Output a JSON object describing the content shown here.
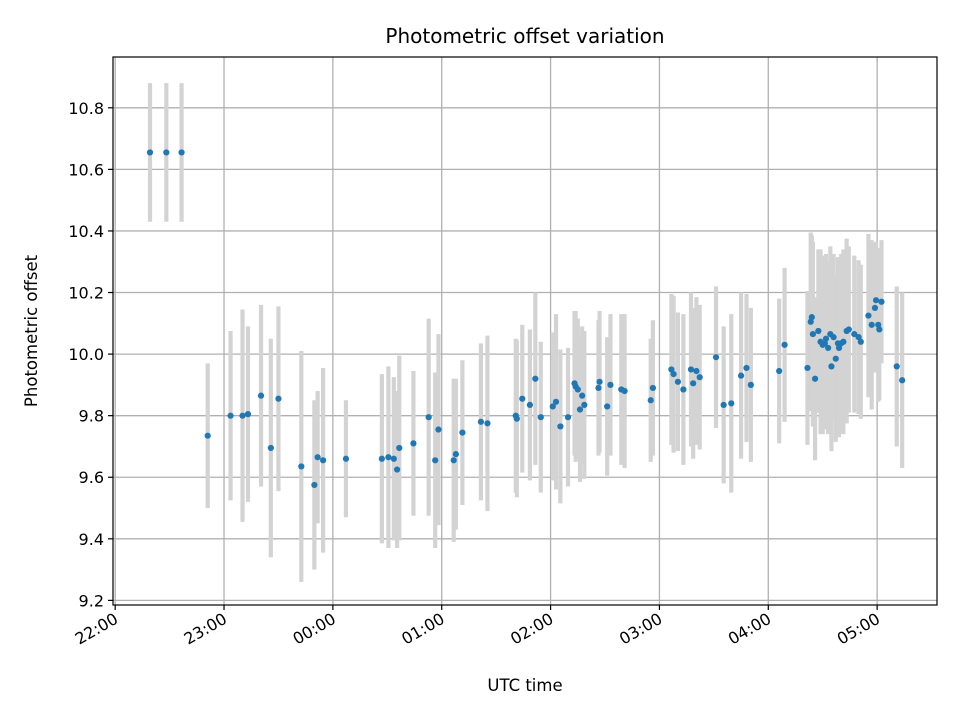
{
  "chart_data": {
    "type": "scatter",
    "title": "Photometric offset variation",
    "xlabel": "UTC time",
    "ylabel": "Photometric offset",
    "x_unit": "hours since 22:00 UTC",
    "xlim": [
      -0.02,
      7.55
    ],
    "ylim": [
      9.185,
      10.965
    ],
    "x_ticks": [
      {
        "value": 0,
        "label": "22:00"
      },
      {
        "value": 1,
        "label": "23:00"
      },
      {
        "value": 2,
        "label": "00:00"
      },
      {
        "value": 3,
        "label": "01:00"
      },
      {
        "value": 4,
        "label": "02:00"
      },
      {
        "value": 5,
        "label": "03:00"
      },
      {
        "value": 6,
        "label": "04:00"
      },
      {
        "value": 7,
        "label": "05:00"
      }
    ],
    "y_ticks": [
      {
        "value": 9.2,
        "label": "9.2"
      },
      {
        "value": 9.4,
        "label": "9.4"
      },
      {
        "value": 9.6,
        "label": "9.6"
      },
      {
        "value": 9.8,
        "label": "9.8"
      },
      {
        "value": 10.0,
        "label": "10.0"
      },
      {
        "value": 10.2,
        "label": "10.2"
      },
      {
        "value": 10.4,
        "label": "10.4"
      },
      {
        "value": 10.6,
        "label": "10.6"
      },
      {
        "value": 10.8,
        "label": "10.8"
      }
    ],
    "grid": true,
    "colors": {
      "point": "#1f77b4",
      "errorbar": "#d3d3d3",
      "grid": "#b0b0b0"
    },
    "series": [
      {
        "points": [
          [
            0.32,
            10.655,
            0.225
          ],
          [
            0.47,
            10.655,
            0.225
          ],
          [
            0.61,
            10.655,
            0.225
          ],
          [
            0.85,
            9.735,
            0.235
          ],
          [
            1.06,
            9.8,
            0.275
          ],
          [
            1.17,
            9.8,
            0.345
          ],
          [
            1.22,
            9.805,
            0.285
          ],
          [
            1.34,
            9.865,
            0.295
          ],
          [
            1.43,
            9.695,
            0.355
          ],
          [
            1.5,
            9.855,
            0.3
          ],
          [
            1.71,
            9.635,
            0.375
          ],
          [
            1.83,
            9.575,
            0.275
          ],
          [
            1.86,
            9.665,
            0.215
          ],
          [
            1.91,
            9.655,
            0.3
          ],
          [
            2.12,
            9.66,
            0.19
          ],
          [
            2.45,
            9.66,
            0.275
          ],
          [
            2.51,
            9.665,
            0.295
          ],
          [
            2.56,
            9.66,
            0.265
          ],
          [
            2.59,
            9.625,
            0.255
          ],
          [
            2.61,
            9.695,
            0.3
          ],
          [
            2.74,
            9.71,
            0.235
          ],
          [
            2.88,
            9.795,
            0.32
          ],
          [
            2.94,
            9.655,
            0.285
          ],
          [
            2.97,
            9.755,
            0.31
          ],
          [
            3.11,
            9.655,
            0.265
          ],
          [
            3.13,
            9.675,
            0.245
          ],
          [
            3.19,
            9.745,
            0.235
          ],
          [
            3.36,
            9.78,
            0.255
          ],
          [
            3.42,
            9.775,
            0.285
          ],
          [
            3.68,
            9.8,
            0.25
          ],
          [
            3.69,
            9.79,
            0.255
          ],
          [
            3.74,
            9.855,
            0.24
          ],
          [
            3.81,
            9.835,
            0.245
          ],
          [
            3.86,
            9.92,
            0.28
          ],
          [
            3.91,
            9.795,
            0.245
          ],
          [
            4.02,
            9.83,
            0.24
          ],
          [
            4.05,
            9.845,
            0.285
          ],
          [
            4.09,
            9.765,
            0.25
          ],
          [
            4.16,
            9.795,
            0.225
          ],
          [
            4.22,
            9.905,
            0.235
          ],
          [
            4.23,
            9.895,
            0.245
          ],
          [
            4.25,
            9.885,
            0.23
          ],
          [
            4.27,
            9.82,
            0.235
          ],
          [
            4.29,
            9.865,
            0.225
          ],
          [
            4.31,
            9.835,
            0.24
          ],
          [
            4.44,
            9.89,
            0.22
          ],
          [
            4.45,
            9.91,
            0.23
          ],
          [
            4.52,
            9.83,
            0.225
          ],
          [
            4.55,
            9.9,
            0.23
          ],
          [
            4.65,
            9.885,
            0.245
          ],
          [
            4.68,
            9.88,
            0.25
          ],
          [
            4.92,
            9.85,
            0.2
          ],
          [
            4.94,
            9.89,
            0.22
          ],
          [
            5.11,
            9.95,
            0.245
          ],
          [
            5.13,
            9.935,
            0.255
          ],
          [
            5.17,
            9.91,
            0.225
          ],
          [
            5.22,
            9.885,
            0.245
          ],
          [
            5.29,
            9.95,
            0.25
          ],
          [
            5.31,
            9.905,
            0.245
          ],
          [
            5.34,
            9.945,
            0.24
          ],
          [
            5.37,
            9.925,
            0.235
          ],
          [
            5.52,
            9.99,
            0.23
          ],
          [
            5.59,
            9.835,
            0.255
          ],
          [
            5.66,
            9.84,
            0.29
          ],
          [
            5.75,
            9.93,
            0.27
          ],
          [
            5.8,
            9.955,
            0.24
          ],
          [
            5.84,
            9.9,
            0.25
          ],
          [
            6.1,
            9.945,
            0.235
          ],
          [
            6.15,
            10.03,
            0.25
          ],
          [
            6.36,
            9.955,
            0.25
          ],
          [
            6.39,
            10.105,
            0.29
          ],
          [
            6.4,
            10.12,
            0.265
          ],
          [
            6.41,
            10.065,
            0.3
          ],
          [
            6.43,
            9.92,
            0.265
          ],
          [
            6.46,
            10.075,
            0.265
          ],
          [
            6.48,
            10.04,
            0.3
          ],
          [
            6.5,
            10.03,
            0.29
          ],
          [
            6.52,
            10.035,
            0.28
          ],
          [
            6.53,
            10.05,
            0.275
          ],
          [
            6.55,
            10.02,
            0.28
          ],
          [
            6.57,
            10.065,
            0.285
          ],
          [
            6.58,
            9.96,
            0.275
          ],
          [
            6.6,
            10.055,
            0.27
          ],
          [
            6.62,
            9.985,
            0.27
          ],
          [
            6.64,
            10.035,
            0.28
          ],
          [
            6.65,
            10.02,
            0.29
          ],
          [
            6.67,
            10.035,
            0.29
          ],
          [
            6.69,
            10.04,
            0.3
          ],
          [
            6.72,
            10.075,
            0.3
          ],
          [
            6.74,
            10.08,
            0.27
          ],
          [
            6.79,
            10.065,
            0.255
          ],
          [
            6.83,
            10.055,
            0.25
          ],
          [
            6.85,
            10.04,
            0.25
          ],
          [
            6.92,
            10.125,
            0.265
          ],
          [
            6.95,
            10.095,
            0.275
          ],
          [
            6.98,
            10.15,
            0.21
          ],
          [
            6.99,
            10.175,
            0.19
          ],
          [
            7.01,
            10.095,
            0.25
          ],
          [
            7.02,
            10.08,
            0.23
          ],
          [
            7.04,
            10.17,
            0.2
          ],
          [
            7.18,
            9.96,
            0.26
          ],
          [
            7.23,
            9.915,
            0.285
          ]
        ]
      }
    ]
  }
}
